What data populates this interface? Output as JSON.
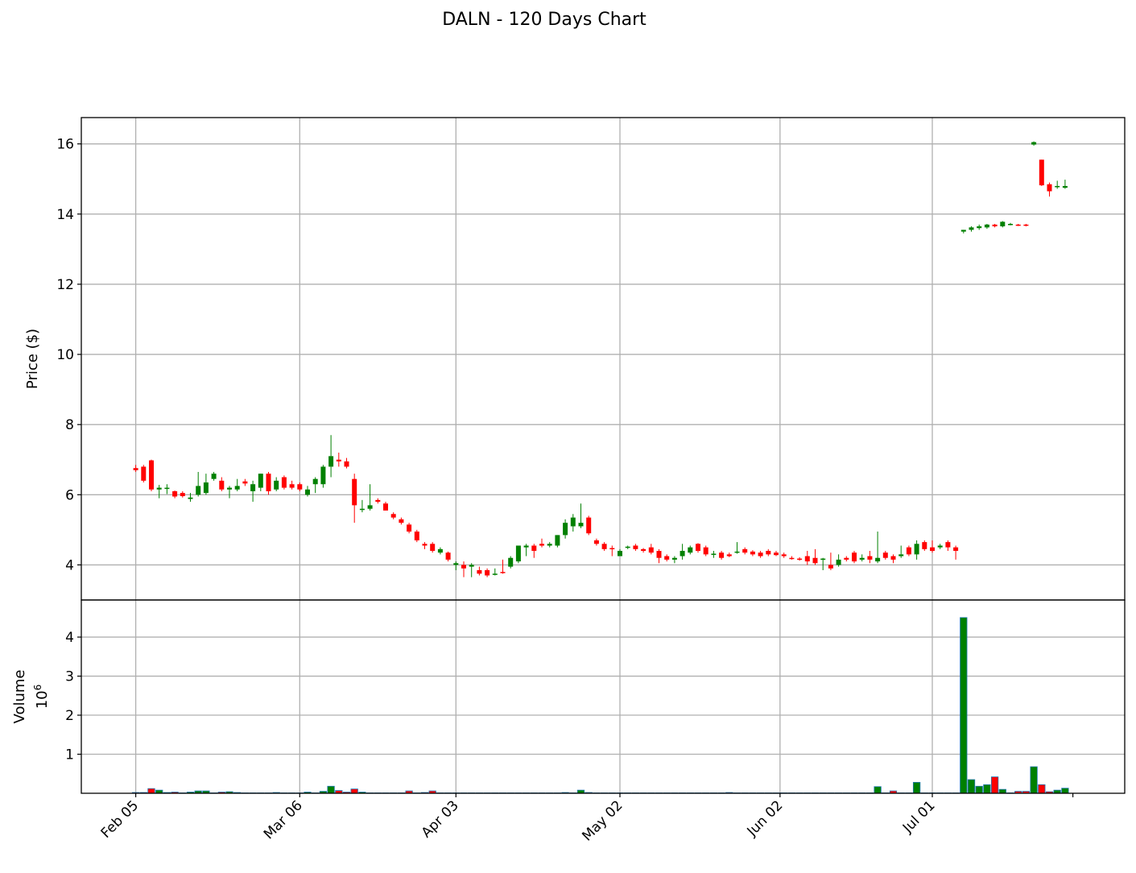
{
  "chart_data": {
    "type": "candlestick",
    "title": "DALN - 120 Days Chart",
    "colors": {
      "up": "#008000",
      "down": "#ff0000",
      "grid": "#b0b0b0",
      "volume_edge": "#1f77b4"
    },
    "grid": true,
    "x_ticks": [
      "Feb 05",
      "Mar 06",
      "Apr 03",
      "May 02",
      "Jun 02",
      "Jul 01"
    ],
    "price_panel": {
      "ylabel": "Price ($)",
      "yticks": [
        4,
        6,
        8,
        10,
        12,
        14,
        16
      ],
      "ylim": [
        3.0,
        16.75
      ]
    },
    "volume_panel": {
      "ylabel": "Volume",
      "scale_label": "10",
      "scale_exp": "6",
      "yticks": [
        1,
        2,
        3,
        4
      ],
      "ylim": [
        0,
        4.95
      ],
      "unit": "millions of shares"
    },
    "candles": [
      {
        "date": "Feb 05",
        "o": 6.76,
        "h": 6.85,
        "l": 6.65,
        "c": 6.7,
        "v": 0.02
      },
      {
        "date": "Feb 06",
        "o": 6.8,
        "h": 6.85,
        "l": 6.35,
        "c": 6.4,
        "v": 0.02
      },
      {
        "date": "Feb 07",
        "o": 6.98,
        "h": 7.0,
        "l": 6.1,
        "c": 6.15,
        "v": 0.12
      },
      {
        "date": "Feb 08",
        "o": 6.15,
        "h": 6.28,
        "l": 5.9,
        "c": 6.2,
        "v": 0.08
      },
      {
        "date": "Feb 09",
        "o": 6.18,
        "h": 6.3,
        "l": 6.02,
        "c": 6.2,
        "v": 0.02
      },
      {
        "date": "Feb 12",
        "o": 6.1,
        "h": 6.12,
        "l": 5.9,
        "c": 5.95,
        "v": 0.03
      },
      {
        "date": "Feb 13",
        "o": 6.05,
        "h": 6.1,
        "l": 5.92,
        "c": 5.96,
        "v": 0.01
      },
      {
        "date": "Feb 14",
        "o": 5.88,
        "h": 6.05,
        "l": 5.8,
        "c": 5.92,
        "v": 0.03
      },
      {
        "date": "Feb 15",
        "o": 6.0,
        "h": 6.65,
        "l": 5.95,
        "c": 6.25,
        "v": 0.06
      },
      {
        "date": "Feb 16",
        "o": 6.05,
        "h": 6.6,
        "l": 6.0,
        "c": 6.35,
        "v": 0.06
      },
      {
        "date": "Feb 20",
        "o": 6.45,
        "h": 6.65,
        "l": 6.4,
        "c": 6.6,
        "v": 0.01
      },
      {
        "date": "Feb 21",
        "o": 6.4,
        "h": 6.5,
        "l": 6.1,
        "c": 6.15,
        "v": 0.03
      },
      {
        "date": "Feb 22",
        "o": 6.15,
        "h": 6.25,
        "l": 5.9,
        "c": 6.2,
        "v": 0.04
      },
      {
        "date": "Feb 23",
        "o": 6.15,
        "h": 6.45,
        "l": 6.1,
        "c": 6.25,
        "v": 0.02
      },
      {
        "date": "Feb 26",
        "o": 6.38,
        "h": 6.45,
        "l": 6.25,
        "c": 6.32,
        "v": 0.01
      },
      {
        "date": "Feb 27",
        "o": 6.1,
        "h": 6.4,
        "l": 5.8,
        "c": 6.3,
        "v": 0.01
      },
      {
        "date": "Feb 28",
        "o": 6.2,
        "h": 6.6,
        "l": 6.1,
        "c": 6.6,
        "v": 0.01
      },
      {
        "date": "Feb 29",
        "o": 6.6,
        "h": 6.65,
        "l": 6.0,
        "c": 6.1,
        "v": 0.01
      },
      {
        "date": "Mar 01",
        "o": 6.15,
        "h": 6.5,
        "l": 6.1,
        "c": 6.4,
        "v": 0.02
      },
      {
        "date": "Mar 04",
        "o": 6.5,
        "h": 6.55,
        "l": 6.15,
        "c": 6.2,
        "v": 0.01
      },
      {
        "date": "Mar 05",
        "o": 6.3,
        "h": 6.4,
        "l": 6.15,
        "c": 6.2,
        "v": 0.01
      },
      {
        "date": "Mar 06",
        "o": 6.3,
        "h": 6.35,
        "l": 6.1,
        "c": 6.15,
        "v": 0.01
      },
      {
        "date": "Mar 07",
        "o": 6.0,
        "h": 6.25,
        "l": 5.95,
        "c": 6.15,
        "v": 0.03
      },
      {
        "date": "Mar 08",
        "o": 6.3,
        "h": 6.5,
        "l": 6.05,
        "c": 6.45,
        "v": 0.01
      },
      {
        "date": "Mar 11",
        "o": 6.3,
        "h": 6.85,
        "l": 6.2,
        "c": 6.8,
        "v": 0.05
      },
      {
        "date": "Mar 12",
        "o": 6.8,
        "h": 7.7,
        "l": 6.5,
        "c": 7.1,
        "v": 0.18
      },
      {
        "date": "Mar 13",
        "o": 7.0,
        "h": 7.2,
        "l": 6.8,
        "c": 6.95,
        "v": 0.07
      },
      {
        "date": "Mar 14",
        "o": 6.95,
        "h": 7.05,
        "l": 6.75,
        "c": 6.8,
        "v": 0.03
      },
      {
        "date": "Mar 15",
        "o": 6.45,
        "h": 6.6,
        "l": 5.2,
        "c": 5.7,
        "v": 0.11
      },
      {
        "date": "Mar 18",
        "o": 5.6,
        "h": 5.85,
        "l": 5.5,
        "c": 5.6,
        "v": 0.03
      },
      {
        "date": "Mar 19",
        "o": 5.6,
        "h": 6.3,
        "l": 5.55,
        "c": 5.7,
        "v": 0.01
      },
      {
        "date": "Mar 20",
        "o": 5.85,
        "h": 5.9,
        "l": 5.75,
        "c": 5.8,
        "v": 0.01
      },
      {
        "date": "Mar 21",
        "o": 5.75,
        "h": 5.8,
        "l": 5.55,
        "c": 5.55,
        "v": 0.01
      },
      {
        "date": "Mar 22",
        "o": 5.45,
        "h": 5.5,
        "l": 5.3,
        "c": 5.35,
        "v": 0.01
      },
      {
        "date": "Mar 25",
        "o": 5.3,
        "h": 5.35,
        "l": 5.15,
        "c": 5.2,
        "v": 0.01
      },
      {
        "date": "Mar 26",
        "o": 5.15,
        "h": 5.2,
        "l": 4.9,
        "c": 4.95,
        "v": 0.06
      },
      {
        "date": "Mar 27",
        "o": 4.95,
        "h": 5.0,
        "l": 4.65,
        "c": 4.7,
        "v": 0.01
      },
      {
        "date": "Mar 28",
        "o": 4.6,
        "h": 4.65,
        "l": 4.45,
        "c": 4.55,
        "v": 0.02
      },
      {
        "date": "Mar 29",
        "o": 4.6,
        "h": 4.65,
        "l": 4.35,
        "c": 4.4,
        "v": 0.06
      },
      {
        "date": "Apr 01",
        "o": 4.35,
        "h": 4.5,
        "l": 4.3,
        "c": 4.45,
        "v": 0.01
      },
      {
        "date": "Apr 02",
        "o": 4.35,
        "h": 4.38,
        "l": 4.1,
        "c": 4.15,
        "v": 0.01
      },
      {
        "date": "Apr 03",
        "o": 4.0,
        "h": 4.1,
        "l": 3.85,
        "c": 4.05,
        "v": 0.01
      },
      {
        "date": "Apr 04",
        "o": 4.0,
        "h": 4.1,
        "l": 3.65,
        "c": 3.9,
        "v": 0.01
      },
      {
        "date": "Apr 05",
        "o": 3.95,
        "h": 4.05,
        "l": 3.65,
        "c": 4.0,
        "v": 0.01
      },
      {
        "date": "Apr 08",
        "o": 3.85,
        "h": 3.95,
        "l": 3.7,
        "c": 3.75,
        "v": 0.01
      },
      {
        "date": "Apr 09",
        "o": 3.85,
        "h": 3.9,
        "l": 3.65,
        "c": 3.7,
        "v": 0.01
      },
      {
        "date": "Apr 10",
        "o": 3.75,
        "h": 3.9,
        "l": 3.7,
        "c": 3.75,
        "v": 0.01
      },
      {
        "date": "Apr 11",
        "o": 3.8,
        "h": 4.15,
        "l": 3.75,
        "c": 3.78,
        "v": 0.01
      },
      {
        "date": "Apr 12",
        "o": 3.95,
        "h": 4.25,
        "l": 3.9,
        "c": 4.2,
        "v": 0.01
      },
      {
        "date": "Apr 15",
        "o": 4.1,
        "h": 4.55,
        "l": 4.05,
        "c": 4.55,
        "v": 0.01
      },
      {
        "date": "Apr 16",
        "o": 4.5,
        "h": 4.6,
        "l": 4.25,
        "c": 4.55,
        "v": 0.01
      },
      {
        "date": "Apr 17",
        "o": 4.55,
        "h": 4.6,
        "l": 4.2,
        "c": 4.4,
        "v": 0.01
      },
      {
        "date": "Apr 18",
        "o": 4.6,
        "h": 4.75,
        "l": 4.5,
        "c": 4.55,
        "v": 0.01
      },
      {
        "date": "Apr 19",
        "o": 4.55,
        "h": 4.65,
        "l": 4.5,
        "c": 4.6,
        "v": 0.01
      },
      {
        "date": "Apr 22",
        "o": 4.55,
        "h": 4.85,
        "l": 4.5,
        "c": 4.85,
        "v": 0.01
      },
      {
        "date": "Apr 23",
        "o": 4.85,
        "h": 5.3,
        "l": 4.75,
        "c": 5.2,
        "v": 0.02
      },
      {
        "date": "Apr 24",
        "o": 5.1,
        "h": 5.45,
        "l": 4.95,
        "c": 5.35,
        "v": 0.01
      },
      {
        "date": "Apr 25",
        "o": 5.1,
        "h": 5.75,
        "l": 5.05,
        "c": 5.2,
        "v": 0.08
      },
      {
        "date": "Apr 26",
        "o": 5.35,
        "h": 5.4,
        "l": 4.85,
        "c": 4.9,
        "v": 0.02
      },
      {
        "date": "Apr 29",
        "o": 4.7,
        "h": 4.75,
        "l": 4.55,
        "c": 4.6,
        "v": 0.01
      },
      {
        "date": "Apr 30",
        "o": 4.6,
        "h": 4.65,
        "l": 4.4,
        "c": 4.45,
        "v": 0.01
      },
      {
        "date": "May 01",
        "o": 4.48,
        "h": 4.55,
        "l": 4.25,
        "c": 4.45,
        "v": 0.01
      },
      {
        "date": "May 02",
        "o": 4.25,
        "h": 4.45,
        "l": 4.25,
        "c": 4.4,
        "v": 0.01
      },
      {
        "date": "May 03",
        "o": 4.5,
        "h": 4.55,
        "l": 4.45,
        "c": 4.52,
        "v": 0.01
      },
      {
        "date": "May 06",
        "o": 4.55,
        "h": 4.6,
        "l": 4.4,
        "c": 4.45,
        "v": 0.01
      },
      {
        "date": "May 07",
        "o": 4.45,
        "h": 4.48,
        "l": 4.35,
        "c": 4.4,
        "v": 0.01
      },
      {
        "date": "May 08",
        "o": 4.5,
        "h": 4.6,
        "l": 4.3,
        "c": 4.35,
        "v": 0.01
      },
      {
        "date": "May 09",
        "o": 4.4,
        "h": 4.45,
        "l": 4.05,
        "c": 4.2,
        "v": 0.01
      },
      {
        "date": "May 10",
        "o": 4.25,
        "h": 4.3,
        "l": 4.1,
        "c": 4.15,
        "v": 0.01
      },
      {
        "date": "May 13",
        "o": 4.15,
        "h": 4.25,
        "l": 4.05,
        "c": 4.2,
        "v": 0.01
      },
      {
        "date": "May 14",
        "o": 4.25,
        "h": 4.6,
        "l": 4.15,
        "c": 4.4,
        "v": 0.01
      },
      {
        "date": "May 15",
        "o": 4.35,
        "h": 4.55,
        "l": 4.3,
        "c": 4.5,
        "v": 0.01
      },
      {
        "date": "May 16",
        "o": 4.6,
        "h": 4.62,
        "l": 4.35,
        "c": 4.4,
        "v": 0.01
      },
      {
        "date": "May 17",
        "o": 4.5,
        "h": 4.55,
        "l": 4.25,
        "c": 4.3,
        "v": 0.01
      },
      {
        "date": "May 20",
        "o": 4.3,
        "h": 4.4,
        "l": 4.2,
        "c": 4.32,
        "v": 0.01
      },
      {
        "date": "May 21",
        "o": 4.35,
        "h": 4.4,
        "l": 4.15,
        "c": 4.2,
        "v": 0.01
      },
      {
        "date": "May 22",
        "o": 4.3,
        "h": 4.35,
        "l": 4.22,
        "c": 4.25,
        "v": 0.02
      },
      {
        "date": "May 23",
        "o": 4.35,
        "h": 4.65,
        "l": 4.32,
        "c": 4.38,
        "v": 0.01
      },
      {
        "date": "May 24",
        "o": 4.45,
        "h": 4.5,
        "l": 4.3,
        "c": 4.35,
        "v": 0.01
      },
      {
        "date": "May 28",
        "o": 4.38,
        "h": 4.42,
        "l": 4.25,
        "c": 4.3,
        "v": 0.01
      },
      {
        "date": "May 29",
        "o": 4.35,
        "h": 4.4,
        "l": 4.2,
        "c": 4.25,
        "v": 0.01
      },
      {
        "date": "May 30",
        "o": 4.4,
        "h": 4.45,
        "l": 4.25,
        "c": 4.3,
        "v": 0.01
      },
      {
        "date": "May 31",
        "o": 4.35,
        "h": 4.4,
        "l": 4.25,
        "c": 4.28,
        "v": 0.01
      },
      {
        "date": "Jun 03",
        "o": 4.3,
        "h": 4.35,
        "l": 4.2,
        "c": 4.25,
        "v": 0.01
      },
      {
        "date": "Jun 04",
        "o": 4.2,
        "h": 4.25,
        "l": 4.15,
        "c": 4.18,
        "v": 0.01
      },
      {
        "date": "Jun 05",
        "o": 4.18,
        "h": 4.22,
        "l": 4.12,
        "c": 4.15,
        "v": 0.01
      },
      {
        "date": "Jun 06",
        "o": 4.25,
        "h": 4.4,
        "l": 4.0,
        "c": 4.1,
        "v": 0.01
      },
      {
        "date": "Jun 07",
        "o": 4.2,
        "h": 4.45,
        "l": 4.0,
        "c": 4.05,
        "v": 0.01
      },
      {
        "date": "Jun 10",
        "o": 4.15,
        "h": 4.2,
        "l": 3.85,
        "c": 4.18,
        "v": 0.01
      },
      {
        "date": "Jun 11",
        "o": 4.0,
        "h": 4.35,
        "l": 3.85,
        "c": 3.9,
        "v": 0.01
      },
      {
        "date": "Jun 12",
        "o": 4.0,
        "h": 4.3,
        "l": 3.95,
        "c": 4.15,
        "v": 0.01
      },
      {
        "date": "Jun 13",
        "o": 4.2,
        "h": 4.25,
        "l": 4.1,
        "c": 4.15,
        "v": 0.01
      },
      {
        "date": "Jun 14",
        "o": 4.35,
        "h": 4.4,
        "l": 4.05,
        "c": 4.1,
        "v": 0.01
      },
      {
        "date": "Jun 17",
        "o": 4.15,
        "h": 4.3,
        "l": 4.1,
        "c": 4.2,
        "v": 0.01
      },
      {
        "date": "Jun 18",
        "o": 4.25,
        "h": 4.4,
        "l": 4.05,
        "c": 4.15,
        "v": 0.01
      },
      {
        "date": "Jun 20",
        "o": 4.1,
        "h": 4.95,
        "l": 4.05,
        "c": 4.2,
        "v": 0.17
      },
      {
        "date": "Jun 21",
        "o": 4.35,
        "h": 4.4,
        "l": 4.15,
        "c": 4.2,
        "v": 0.01
      },
      {
        "date": "Jun 24",
        "o": 4.25,
        "h": 4.3,
        "l": 4.05,
        "c": 4.15,
        "v": 0.06
      },
      {
        "date": "Jun 25",
        "o": 4.25,
        "h": 4.55,
        "l": 4.2,
        "c": 4.3,
        "v": 0.01
      },
      {
        "date": "Jun 26",
        "o": 4.5,
        "h": 4.55,
        "l": 4.25,
        "c": 4.3,
        "v": 0.01
      },
      {
        "date": "Jun 27",
        "o": 4.3,
        "h": 4.7,
        "l": 4.15,
        "c": 4.6,
        "v": 0.28
      },
      {
        "date": "Jun 28",
        "o": 4.65,
        "h": 4.7,
        "l": 4.4,
        "c": 4.45,
        "v": 0.01
      },
      {
        "date": "Jul 01",
        "o": 4.5,
        "h": 4.7,
        "l": 4.35,
        "c": 4.4,
        "v": 0.01
      },
      {
        "date": "Jul 02",
        "o": 4.5,
        "h": 4.6,
        "l": 4.45,
        "c": 4.55,
        "v": 0.01
      },
      {
        "date": "Jul 03",
        "o": 4.65,
        "h": 4.7,
        "l": 4.4,
        "c": 4.5,
        "v": 0.01
      },
      {
        "date": "Jul 05",
        "o": 4.5,
        "h": 4.55,
        "l": 4.15,
        "c": 4.4,
        "v": 0.01
      },
      {
        "date": "Jul 08",
        "o": 13.5,
        "h": 13.55,
        "l": 13.45,
        "c": 13.55,
        "v": 4.5
      },
      {
        "date": "Jul 09",
        "o": 13.55,
        "h": 13.65,
        "l": 13.5,
        "c": 13.62,
        "v": 0.35
      },
      {
        "date": "Jul 10",
        "o": 13.6,
        "h": 13.7,
        "l": 13.55,
        "c": 13.65,
        "v": 0.18
      },
      {
        "date": "Jul 11",
        "o": 13.62,
        "h": 13.72,
        "l": 13.58,
        "c": 13.7,
        "v": 0.22
      },
      {
        "date": "Jul 12",
        "o": 13.7,
        "h": 13.72,
        "l": 13.62,
        "c": 13.65,
        "v": 0.42
      },
      {
        "date": "Jul 15",
        "o": 13.65,
        "h": 13.8,
        "l": 13.62,
        "c": 13.78,
        "v": 0.1
      },
      {
        "date": "Jul 16",
        "o": 13.72,
        "h": 13.75,
        "l": 13.68,
        "c": 13.72,
        "v": 0.01
      },
      {
        "date": "Jul 17",
        "o": 13.7,
        "h": 13.72,
        "l": 13.66,
        "c": 13.68,
        "v": 0.05
      },
      {
        "date": "Jul 18",
        "o": 13.7,
        "h": 13.72,
        "l": 13.65,
        "c": 13.67,
        "v": 0.05
      },
      {
        "date": "Jul 19",
        "o": 15.98,
        "h": 16.07,
        "l": 15.95,
        "c": 16.05,
        "v": 0.68
      },
      {
        "date": "Jul 22",
        "o": 15.55,
        "h": 15.55,
        "l": 14.8,
        "c": 14.82,
        "v": 0.22
      },
      {
        "date": "Jul 23",
        "o": 14.85,
        "h": 14.9,
        "l": 14.5,
        "c": 14.65,
        "v": 0.04
      },
      {
        "date": "Jul 24",
        "o": 14.78,
        "h": 14.95,
        "l": 14.72,
        "c": 14.8,
        "v": 0.08
      },
      {
        "date": "Jul 25",
        "o": 14.75,
        "h": 14.98,
        "l": 14.72,
        "c": 14.8,
        "v": 0.13
      }
    ]
  }
}
